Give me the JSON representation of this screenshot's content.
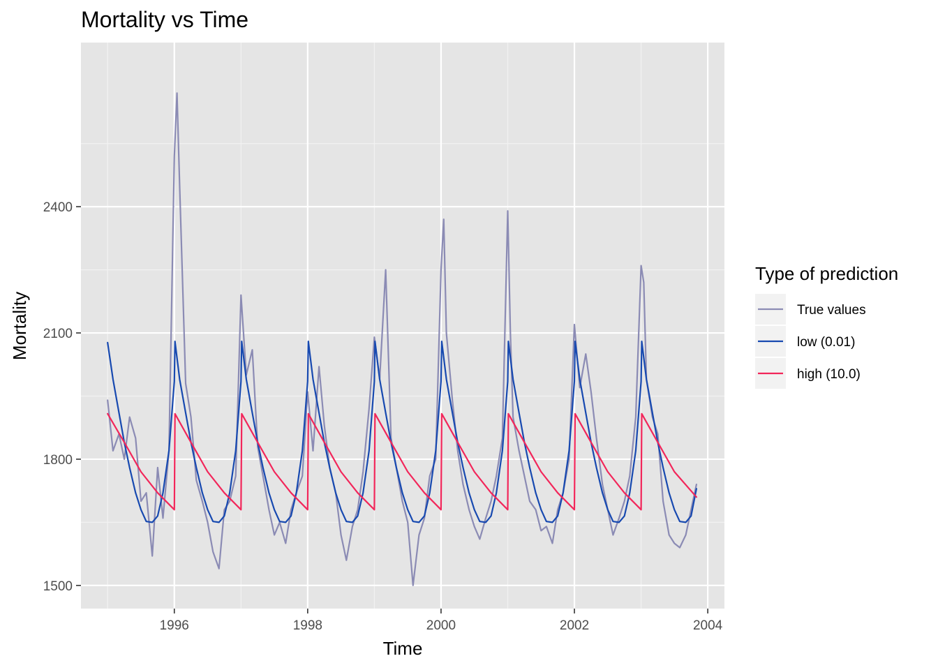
{
  "chart_data": {
    "type": "line",
    "title": "Mortality vs Time",
    "xlabel": "Time",
    "ylabel": "Mortality",
    "xlim": [
      1994.6,
      2004.25
    ],
    "ylim": [
      1445,
      2790
    ],
    "x_ticks": [
      1996,
      1998,
      2000,
      2002,
      2004
    ],
    "y_ticks": [
      1500,
      1800,
      2100,
      2400
    ],
    "grid": true,
    "legend": {
      "title": "Type of prediction",
      "position": "right",
      "entries": [
        "True values",
        "low (0.01)",
        "high (10.0)"
      ]
    },
    "series": [
      {
        "name": "True values",
        "color": "#8b8bb4",
        "x": [
          1995.0,
          1995.08,
          1995.17,
          1995.25,
          1995.33,
          1995.42,
          1995.5,
          1995.58,
          1995.67,
          1995.75,
          1995.83,
          1995.92,
          1996.0,
          1996.04,
          1996.08,
          1996.17,
          1996.25,
          1996.33,
          1996.42,
          1996.5,
          1996.58,
          1996.67,
          1996.75,
          1996.83,
          1996.92,
          1997.0,
          1997.08,
          1997.17,
          1997.25,
          1997.33,
          1997.42,
          1997.5,
          1997.58,
          1997.67,
          1997.75,
          1997.83,
          1997.92,
          1998.0,
          1998.08,
          1998.17,
          1998.25,
          1998.33,
          1998.42,
          1998.5,
          1998.58,
          1998.67,
          1998.75,
          1998.83,
          1998.92,
          1999.0,
          1999.08,
          1999.17,
          1999.25,
          1999.33,
          1999.42,
          1999.5,
          1999.58,
          1999.67,
          1999.75,
          1999.83,
          1999.92,
          2000.0,
          2000.04,
          2000.08,
          2000.17,
          2000.25,
          2000.33,
          2000.42,
          2000.5,
          2000.58,
          2000.67,
          2000.75,
          2000.83,
          2000.92,
          2001.0,
          2001.04,
          2001.08,
          2001.17,
          2001.25,
          2001.33,
          2001.42,
          2001.5,
          2001.58,
          2001.67,
          2001.75,
          2001.83,
          2001.92,
          2002.0,
          2002.08,
          2002.17,
          2002.25,
          2002.33,
          2002.42,
          2002.5,
          2002.58,
          2002.67,
          2002.75,
          2002.83,
          2002.92,
          2003.0,
          2003.04,
          2003.08,
          2003.17,
          2003.25,
          2003.33,
          2003.42,
          2003.5,
          2003.58,
          2003.67,
          2003.75,
          2003.83
        ],
        "y": [
          1940,
          1820,
          1860,
          1800,
          1900,
          1850,
          1700,
          1720,
          1570,
          1780,
          1660,
          1820,
          2520,
          2670,
          2450,
          1980,
          1900,
          1750,
          1700,
          1650,
          1580,
          1540,
          1680,
          1700,
          1760,
          2190,
          2000,
          2060,
          1830,
          1760,
          1680,
          1620,
          1650,
          1600,
          1680,
          1720,
          1760,
          1960,
          1820,
          2020,
          1880,
          1780,
          1720,
          1620,
          1560,
          1640,
          1680,
          1770,
          1920,
          2090,
          1990,
          2250,
          1850,
          1780,
          1700,
          1650,
          1500,
          1620,
          1660,
          1760,
          1800,
          2250,
          2370,
          2100,
          1940,
          1820,
          1740,
          1680,
          1640,
          1610,
          1660,
          1700,
          1760,
          1850,
          2390,
          2100,
          1900,
          1820,
          1760,
          1700,
          1680,
          1630,
          1640,
          1600,
          1680,
          1720,
          1800,
          2120,
          1970,
          2050,
          1960,
          1850,
          1740,
          1680,
          1620,
          1660,
          1700,
          1760,
          1900,
          2260,
          2220,
          1990,
          1900,
          1860,
          1700,
          1620,
          1600,
          1590,
          1620,
          1680,
          1740
        ]
      },
      {
        "name": "low (0.01)",
        "color": "#1749b0",
        "x": [
          1995.0,
          1995.08,
          1995.17,
          1995.25,
          1995.33,
          1995.42,
          1995.5,
          1995.58,
          1995.67,
          1995.75,
          1995.83,
          1995.92,
          1996.0,
          1996.01,
          1996.08,
          1996.17,
          1996.25,
          1996.33,
          1996.42,
          1996.5,
          1996.58,
          1996.67,
          1996.75,
          1996.83,
          1996.92,
          1997.0,
          1997.01,
          1997.08,
          1997.17,
          1997.25,
          1997.33,
          1997.42,
          1997.5,
          1997.58,
          1997.67,
          1997.75,
          1997.83,
          1997.92,
          1998.0,
          1998.01,
          1998.08,
          1998.17,
          1998.25,
          1998.33,
          1998.42,
          1998.5,
          1998.58,
          1998.67,
          1998.75,
          1998.83,
          1998.92,
          1999.0,
          1999.01,
          1999.08,
          1999.17,
          1999.25,
          1999.33,
          1999.42,
          1999.5,
          1999.58,
          1999.67,
          1999.75,
          1999.83,
          1999.92,
          2000.0,
          2000.01,
          2000.08,
          2000.17,
          2000.25,
          2000.33,
          2000.42,
          2000.5,
          2000.58,
          2000.67,
          2000.75,
          2000.83,
          2000.92,
          2001.0,
          2001.01,
          2001.08,
          2001.17,
          2001.25,
          2001.33,
          2001.42,
          2001.5,
          2001.58,
          2001.67,
          2001.75,
          2001.83,
          2001.92,
          2002.0,
          2002.01,
          2002.08,
          2002.17,
          2002.25,
          2002.33,
          2002.42,
          2002.5,
          2002.58,
          2002.67,
          2002.75,
          2002.83,
          2002.92,
          2003.0,
          2003.01,
          2003.08,
          2003.17,
          2003.25,
          2003.33,
          2003.42,
          2003.5,
          2003.58,
          2003.67,
          2003.75,
          2003.83
        ],
        "y": [
          2077,
          1990,
          1910,
          1840,
          1780,
          1720,
          1680,
          1652,
          1650,
          1665,
          1720,
          1820,
          1985,
          2080,
          1990,
          1910,
          1840,
          1780,
          1720,
          1680,
          1652,
          1650,
          1665,
          1720,
          1820,
          1985,
          2080,
          1990,
          1910,
          1840,
          1780,
          1720,
          1680,
          1652,
          1650,
          1665,
          1720,
          1820,
          1985,
          2080,
          1990,
          1910,
          1840,
          1780,
          1720,
          1680,
          1652,
          1650,
          1665,
          1720,
          1820,
          1985,
          2080,
          1990,
          1910,
          1840,
          1780,
          1720,
          1680,
          1652,
          1650,
          1665,
          1720,
          1820,
          1985,
          2080,
          1990,
          1910,
          1840,
          1780,
          1720,
          1680,
          1652,
          1650,
          1665,
          1720,
          1820,
          1985,
          2080,
          1990,
          1910,
          1840,
          1780,
          1720,
          1680,
          1652,
          1650,
          1665,
          1720,
          1820,
          1985,
          2080,
          1990,
          1910,
          1840,
          1780,
          1720,
          1680,
          1652,
          1650,
          1665,
          1720,
          1820,
          1985,
          2080,
          1990,
          1910,
          1840,
          1780,
          1720,
          1680,
          1652,
          1650,
          1665,
          1730
        ]
      },
      {
        "name": "high (10.0)",
        "color": "#f2265a",
        "x": [
          1995.0,
          1995.25,
          1995.5,
          1995.75,
          1996.0,
          1996.01,
          1996.25,
          1996.5,
          1996.75,
          1997.0,
          1997.01,
          1997.25,
          1997.5,
          1997.75,
          1998.0,
          1998.01,
          1998.25,
          1998.5,
          1998.75,
          1999.0,
          1999.01,
          1999.25,
          1999.5,
          1999.75,
          2000.0,
          2000.01,
          2000.25,
          2000.5,
          2000.75,
          2001.0,
          2001.01,
          2001.25,
          2001.5,
          2001.75,
          2002.0,
          2002.01,
          2002.25,
          2002.5,
          2002.75,
          2003.0,
          2003.01,
          2003.25,
          2003.5,
          2003.83
        ],
        "y": [
          1908,
          1840,
          1770,
          1720,
          1680,
          1908,
          1840,
          1770,
          1720,
          1680,
          1908,
          1840,
          1770,
          1720,
          1680,
          1908,
          1840,
          1770,
          1720,
          1680,
          1908,
          1840,
          1770,
          1720,
          1680,
          1908,
          1840,
          1770,
          1720,
          1680,
          1908,
          1840,
          1770,
          1720,
          1680,
          1908,
          1840,
          1770,
          1720,
          1680,
          1908,
          1840,
          1770,
          1710
        ]
      }
    ]
  }
}
